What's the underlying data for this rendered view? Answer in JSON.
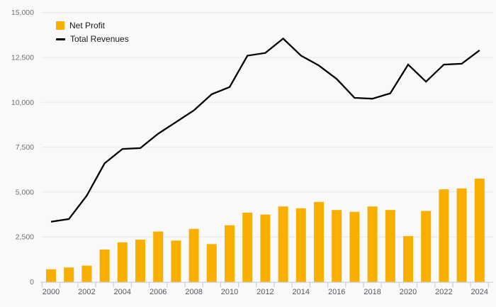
{
  "page": {
    "background_color": "#f9f9f9"
  },
  "legend": {
    "position": "top-left",
    "items": [
      {
        "label": "Net Profit",
        "marker": "square",
        "color": "#f9af00"
      },
      {
        "label": "Total Revenues",
        "marker": "line",
        "color": "#000000"
      }
    ]
  },
  "chart_data": {
    "type": "bar+line",
    "title": "",
    "categories": [
      "2000",
      "2001",
      "2002",
      "2003",
      "2004",
      "2005",
      "2006",
      "2007",
      "2008",
      "2009",
      "2010",
      "2011",
      "2012",
      "2013",
      "2014",
      "2015",
      "2016",
      "2017",
      "2018",
      "2019",
      "2020",
      "2021",
      "2022",
      "2023",
      "2024"
    ],
    "series": [
      {
        "name": "Net Profit",
        "type": "bar",
        "color": "#f9af00",
        "values": [
          700,
          800,
          900,
          1800,
          2200,
          2350,
          2800,
          2300,
          2950,
          2100,
          3150,
          3850,
          3750,
          4200,
          4100,
          4450,
          4000,
          3900,
          4200,
          4000,
          2550,
          3950,
          5150,
          5200,
          5750
        ]
      },
      {
        "name": "Total Revenues",
        "type": "line",
        "color": "#000000",
        "values": [
          3350,
          3500,
          4800,
          6600,
          7400,
          7450,
          8250,
          8900,
          9550,
          10450,
          10850,
          12600,
          12750,
          13550,
          12600,
          12050,
          11300,
          10250,
          10200,
          10500,
          12100,
          11150,
          12100,
          12150,
          12900
        ]
      }
    ],
    "ylim": [
      0,
      15000
    ],
    "yticks": [
      0,
      2500,
      5000,
      7500,
      10000,
      12500,
      15000
    ],
    "ytick_labels": [
      "0",
      "2,500",
      "5,000",
      "7,500",
      "10,000",
      "12,500",
      "15,000"
    ],
    "xtick_labels": [
      "2000",
      "2002",
      "2004",
      "2006",
      "2008",
      "2010",
      "2012",
      "2014",
      "2016",
      "2018",
      "2020",
      "2022",
      "2024"
    ],
    "grid": "horizontal",
    "legend_position": "top-left",
    "colors": {
      "grid": "#e8e8e8",
      "axis": "#c8cfe2",
      "y_label": "#707070",
      "x_label": "#55595f",
      "legend_text": "#17191c"
    }
  }
}
